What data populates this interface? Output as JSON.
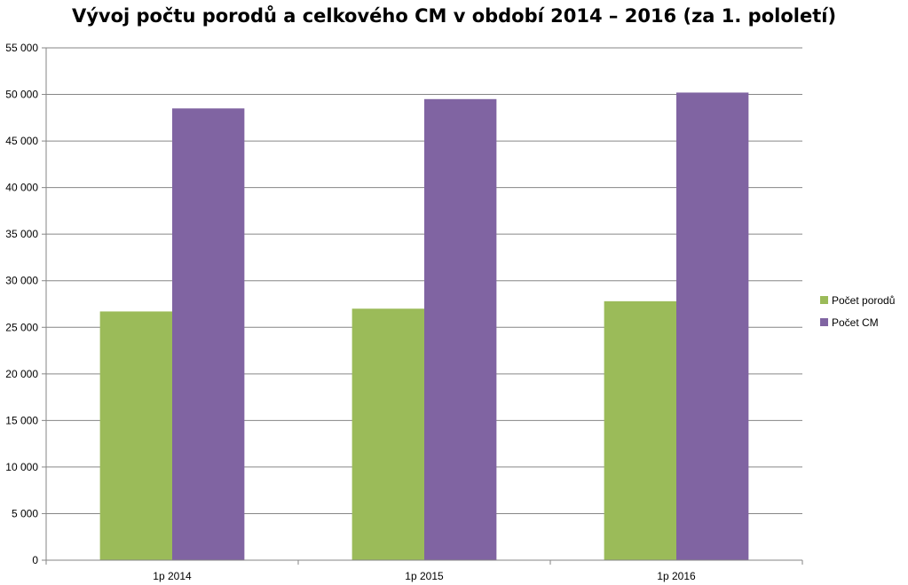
{
  "chart_data": {
    "type": "bar",
    "title": "Vývoj počtu porodů a celkového CM v období 2014 – 2016 (za 1. pololetí)",
    "categories": [
      "1p 2014",
      "1p 2015",
      "1p 2016"
    ],
    "series": [
      {
        "name": "Počet porodů",
        "values": [
          26700,
          27000,
          27800
        ],
        "color": "#9bbb59"
      },
      {
        "name": "Počet CM",
        "values": [
          48500,
          49500,
          50200
        ],
        "color": "#8064a2"
      }
    ],
    "ylim": [
      0,
      55000
    ],
    "y_ticks": [
      0,
      5000,
      10000,
      15000,
      20000,
      25000,
      30000,
      35000,
      40000,
      45000,
      50000,
      55000
    ],
    "y_tick_labels": [
      "0",
      "5 000",
      "10 000",
      "15 000",
      "20 000",
      "25 000",
      "30 000",
      "35 000",
      "40 000",
      "45 000",
      "50 000",
      "55 000"
    ],
    "grid": true,
    "legend_position": "right",
    "xlabel": "",
    "ylabel": ""
  }
}
